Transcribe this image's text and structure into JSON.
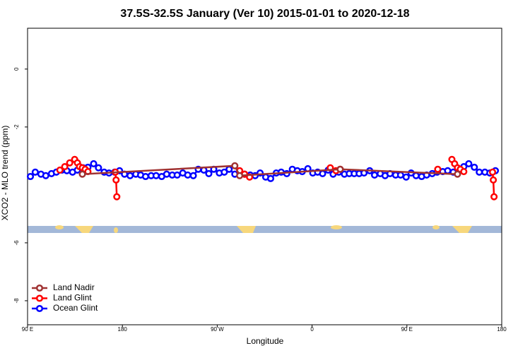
{
  "chart_data": {
    "type": "line",
    "title": "37.5S-32.5S January (Ver 10)   2015-01-01 to 2020-12-18",
    "x_label": "Longitude",
    "y_label": "XCO2 - MLO trend (ppm)",
    "xlim": [
      90,
      540
    ],
    "xticks": [
      {
        "value": 90,
        "label": "90 E"
      },
      {
        "value": 180,
        "label": "180"
      },
      {
        "value": 270,
        "label": "90 W"
      },
      {
        "value": 360,
        "label": "0"
      },
      {
        "value": 450,
        "label": "90 E"
      },
      {
        "value": 540,
        "label": "180"
      }
    ],
    "ylim": [
      -8.83,
      1.41
    ],
    "yticks": [
      0,
      -2,
      -6,
      -8
    ],
    "legend": "bottom-left",
    "series": [
      {
        "name": "Land Nadir",
        "color": "#a03232",
        "x": [
          142,
          286.7,
          291.3,
          386.7,
          498
        ],
        "values": [
          -3.63,
          -3.34,
          -3.68,
          -3.46,
          -3.63
        ]
      },
      {
        "name": "Land Glint",
        "color": "#ff0000",
        "x": [
          120.7,
          125.3,
          130,
          134.7,
          137.3,
          139.3,
          142,
          144.7,
          147.3,
          null,
          173.3,
          174,
          174.7,
          null,
          291.3,
          296,
          300.7,
          null,
          377.3,
          382.7,
          386.7,
          null,
          479.3,
          null,
          492.7,
          495.3,
          498,
          500.7,
          504,
          null,
          531.3,
          532,
          532.7
        ],
        "values": [
          -3.49,
          -3.37,
          -3.24,
          -3.12,
          -3.24,
          -3.37,
          -3.41,
          -3.46,
          -3.54,
          null,
          -3.56,
          -3.83,
          -4.41,
          null,
          -3.51,
          -3.63,
          -3.73,
          null,
          -3.41,
          -3.51,
          -3.46,
          null,
          -3.46,
          null,
          -3.12,
          -3.27,
          -3.41,
          -3.46,
          -3.54,
          null,
          -3.56,
          -3.83,
          -4.41
        ]
      },
      {
        "name": "Ocean Glint",
        "color": "#0000ff",
        "x": [
          92.7,
          97.3,
          102.7,
          107.3,
          112.7,
          117.3,
          122.7,
          127.3,
          132.7,
          137.3,
          142.7,
          147.3,
          152.7,
          157.3,
          162.7,
          167.3,
          172.7,
          177.3,
          182,
          187.3,
          192.7,
          197.3,
          202,
          207.3,
          212,
          217.3,
          222,
          227.3,
          232,
          237.3,
          242,
          247.3,
          252,
          257.3,
          262,
          266.7,
          272,
          276.7,
          281.3,
          286.7,
          291.3,
          296,
          301.3,
          306,
          310.7,
          316,
          320.7,
          326,
          330.7,
          336,
          341.3,
          346,
          350.7,
          356,
          360.7,
          365.3,
          370,
          375.3,
          380,
          385.3,
          390.7,
          395.3,
          400,
          404.7,
          409.3,
          414.7,
          419.3,
          424.7,
          429.3,
          434,
          439.3,
          444,
          449.3,
          454,
          458.7,
          464,
          468.7,
          474,
          478.7,
          484,
          488.7,
          494,
          498.7,
          504,
          508.7,
          514,
          518.7,
          524,
          528.7,
          534
        ],
        "values": [
          -3.71,
          -3.56,
          -3.63,
          -3.68,
          -3.61,
          -3.56,
          -3.49,
          -3.51,
          -3.56,
          -3.49,
          -3.41,
          -3.39,
          -3.27,
          -3.41,
          -3.56,
          -3.59,
          -3.56,
          -3.51,
          -3.63,
          -3.68,
          -3.63,
          -3.66,
          -3.71,
          -3.68,
          -3.68,
          -3.71,
          -3.63,
          -3.66,
          -3.66,
          -3.59,
          -3.66,
          -3.68,
          -3.46,
          -3.49,
          -3.61,
          -3.46,
          -3.59,
          -3.56,
          -3.46,
          -3.63,
          -3.56,
          -3.63,
          -3.66,
          -3.68,
          -3.59,
          -3.73,
          -3.78,
          -3.59,
          -3.56,
          -3.61,
          -3.46,
          -3.51,
          -3.54,
          -3.44,
          -3.59,
          -3.56,
          -3.61,
          -3.49,
          -3.63,
          -3.56,
          -3.63,
          -3.61,
          -3.61,
          -3.61,
          -3.59,
          -3.51,
          -3.66,
          -3.61,
          -3.68,
          -3.61,
          -3.66,
          -3.66,
          -3.73,
          -3.59,
          -3.68,
          -3.71,
          -3.66,
          -3.61,
          -3.56,
          -3.54,
          -3.51,
          -3.56,
          -3.46,
          -3.37,
          -3.27,
          -3.39,
          -3.56,
          -3.56,
          -3.59,
          -3.51
        ]
      }
    ]
  }
}
